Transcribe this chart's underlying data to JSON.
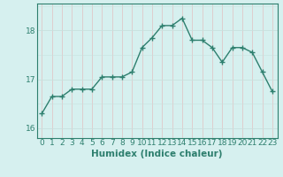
{
  "x": [
    0,
    1,
    2,
    3,
    4,
    5,
    6,
    7,
    8,
    9,
    10,
    11,
    12,
    13,
    14,
    15,
    16,
    17,
    18,
    19,
    20,
    21,
    22,
    23
  ],
  "y": [
    16.3,
    16.65,
    16.65,
    16.8,
    16.8,
    16.8,
    17.05,
    17.05,
    17.05,
    17.15,
    17.65,
    17.85,
    18.1,
    18.1,
    18.25,
    17.8,
    17.8,
    17.65,
    17.35,
    17.65,
    17.65,
    17.55,
    17.15,
    16.75
  ],
  "line_color": "#2e7f6e",
  "marker": "+",
  "marker_size": 5,
  "bg_color": "#d6f0ef",
  "grid_color_h": "#c8e0de",
  "grid_color_v": "#e0c8c8",
  "xlabel": "Humidex (Indice chaleur)",
  "ylim": [
    15.8,
    18.55
  ],
  "yticks": [
    16,
    17,
    18
  ],
  "xticks": [
    0,
    1,
    2,
    3,
    4,
    5,
    6,
    7,
    8,
    9,
    10,
    11,
    12,
    13,
    14,
    15,
    16,
    17,
    18,
    19,
    20,
    21,
    22,
    23
  ],
  "xlabel_fontsize": 7.5,
  "tick_fontsize": 6.5,
  "line_width": 1.0
}
